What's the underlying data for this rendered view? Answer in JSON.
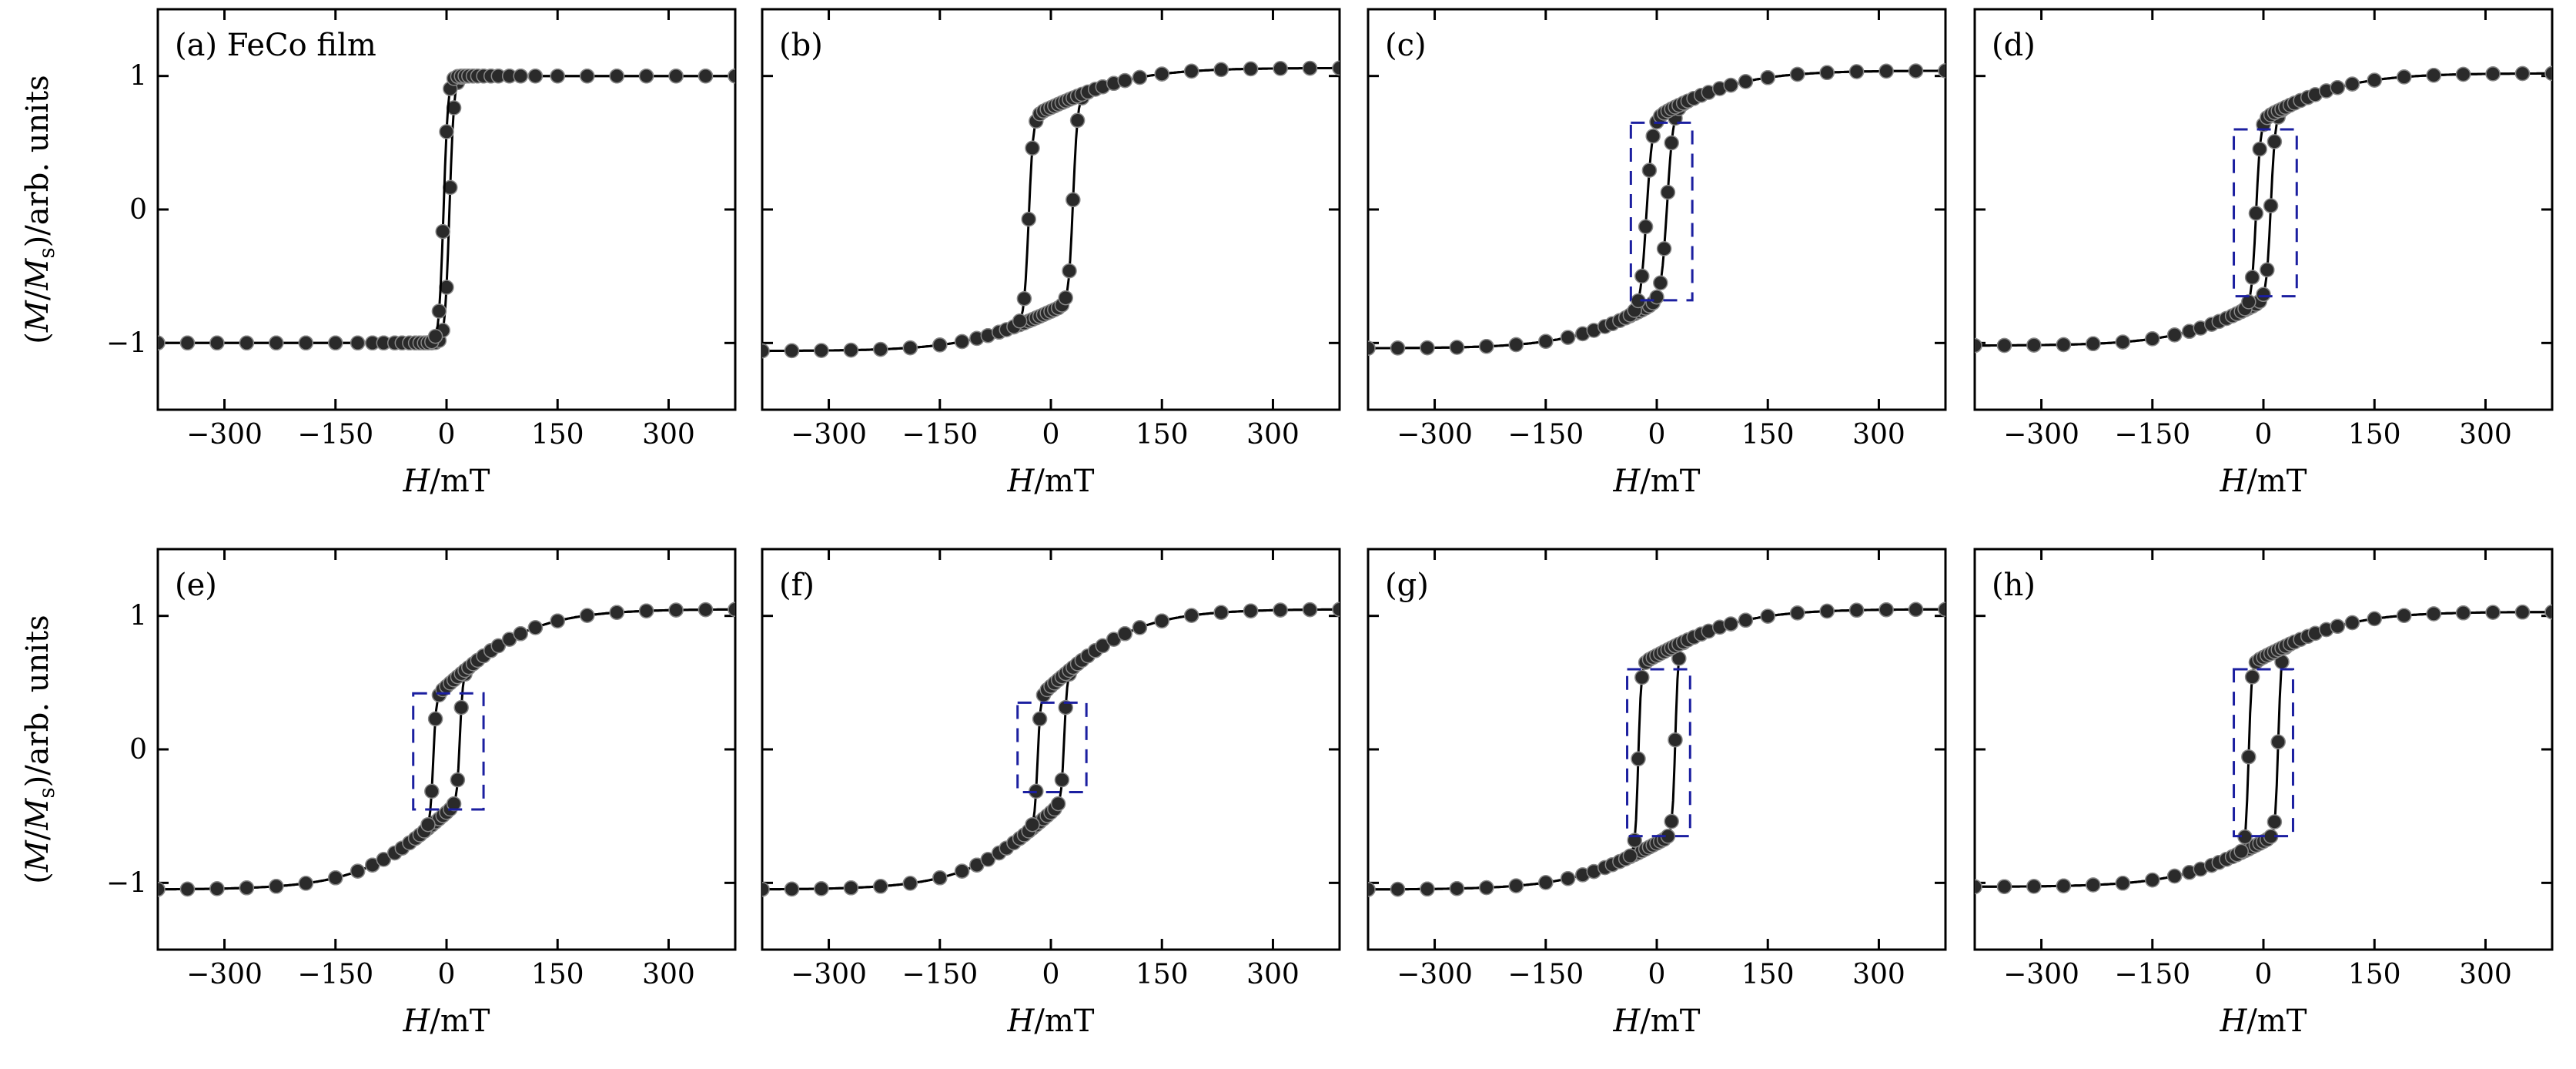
{
  "chart_data": {
    "type": "line",
    "layout": "2x4 grid of panels",
    "x_axis": {
      "label_italic": "H",
      "label_unit": "/mT",
      "range": [
        -390,
        390
      ],
      "ticks": [
        -300,
        -150,
        0,
        150,
        300
      ],
      "tick_labels": [
        "−300",
        "−150",
        "0",
        "150",
        "300"
      ]
    },
    "y_axis": {
      "label_prefix": "(",
      "label_M": "M",
      "label_slash": "/",
      "label_Ms": "M",
      "label_sub": "s",
      "label_suffix": ")/arb. units",
      "range": [
        -1.5,
        1.5
      ],
      "ticks": [
        -1,
        0,
        1
      ],
      "tick_labels": [
        "−1",
        "0",
        "1"
      ]
    },
    "grid": false,
    "legend": "none",
    "colors": {
      "curve": "#000000",
      "marker": "#2a2a2a",
      "dashed_box": "#1b1fa0"
    },
    "panels": [
      {
        "label": "(a) FeCo film",
        "hc": 4,
        "w": 6,
        "k": 0.0,
        "ms": 1.0,
        "box": null
      },
      {
        "label": "(b)",
        "hc": 30,
        "w": 6,
        "k": 0.28,
        "ms": 1.06,
        "box": null
      },
      {
        "label": "(c)",
        "hc": 14,
        "w": 8,
        "k": 0.33,
        "ms": 1.04,
        "box": [
          -35,
          48,
          -0.68,
          0.65
        ]
      },
      {
        "label": "(d)",
        "hc": 10,
        "w": 6,
        "k": 0.33,
        "ms": 1.02,
        "box": [
          -40,
          45,
          -0.65,
          0.6
        ]
      },
      {
        "label": "(e)",
        "hc": 18,
        "w": 4,
        "k": 0.55,
        "ms": 1.05,
        "box": [
          -45,
          50,
          -0.45,
          0.42
        ]
      },
      {
        "label": "(f)",
        "hc": 18,
        "w": 4,
        "k": 0.55,
        "ms": 1.05,
        "box": [
          -45,
          48,
          -0.32,
          0.35
        ]
      },
      {
        "label": "(g)",
        "hc": 25,
        "w": 4,
        "k": 0.33,
        "ms": 1.05,
        "box": [
          -40,
          45,
          -0.65,
          0.6
        ]
      },
      {
        "label": "(h)",
        "hc": 20,
        "w": 4,
        "k": 0.33,
        "ms": 1.03,
        "box": [
          -40,
          40,
          -0.65,
          0.6
        ]
      }
    ]
  }
}
